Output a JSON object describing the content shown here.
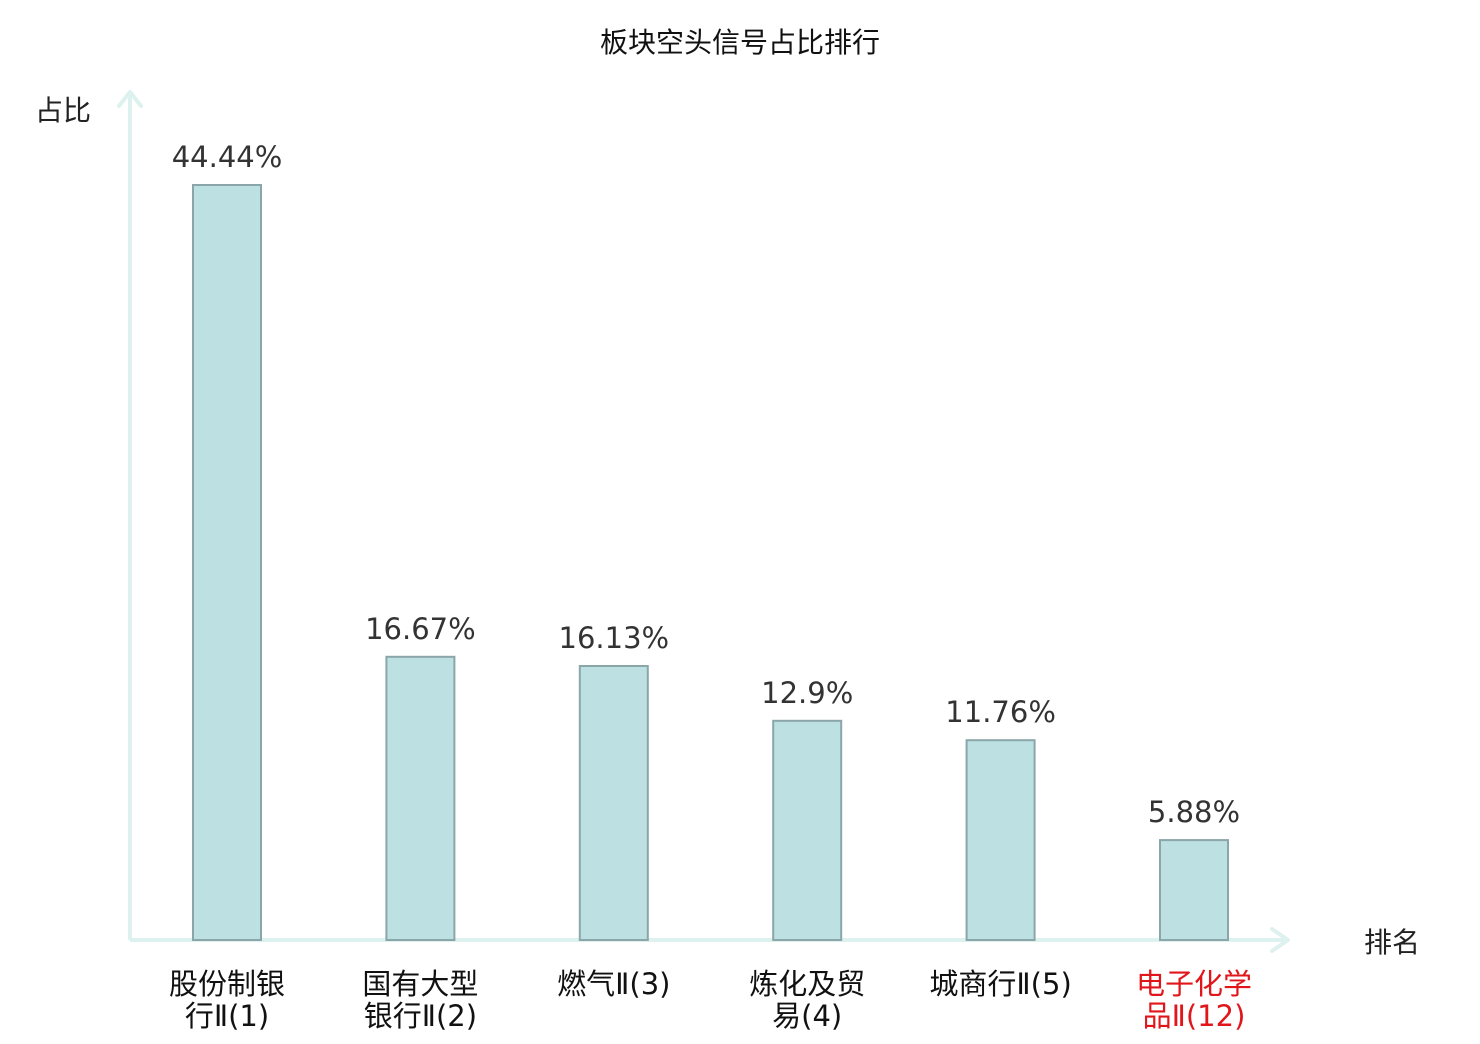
{
  "chart_data": {
    "type": "bar",
    "title": "板块空头信号占比排行",
    "ylabel": "占比",
    "xlabel": "排名",
    "categories": [
      [
        "股份制银",
        "行Ⅱ(1)"
      ],
      [
        "国有大型",
        "银行Ⅱ(2)"
      ],
      [
        "燃气Ⅱ(3)"
      ],
      [
        "炼化及贸",
        "易(4)"
      ],
      [
        "城商行Ⅱ(5)"
      ],
      [
        "电子化学",
        "品Ⅱ(12)"
      ]
    ],
    "values": [
      44.44,
      16.67,
      16.13,
      12.9,
      11.76,
      5.88
    ],
    "data_labels": [
      "44.44%",
      "16.67%",
      "16.13%",
      "12.9%",
      "11.76%",
      "5.88%"
    ],
    "highlight": [
      false,
      false,
      false,
      false,
      false,
      true
    ],
    "ylim": [
      0,
      50
    ],
    "grid": false,
    "legend": "none",
    "colors": {
      "bar_fill": "#bde0e3",
      "bar_stroke": "#8aa6a9",
      "axis": "#ddf1ee",
      "text": "#333333",
      "title": "#111111",
      "highlight": "#e0161b"
    }
  }
}
